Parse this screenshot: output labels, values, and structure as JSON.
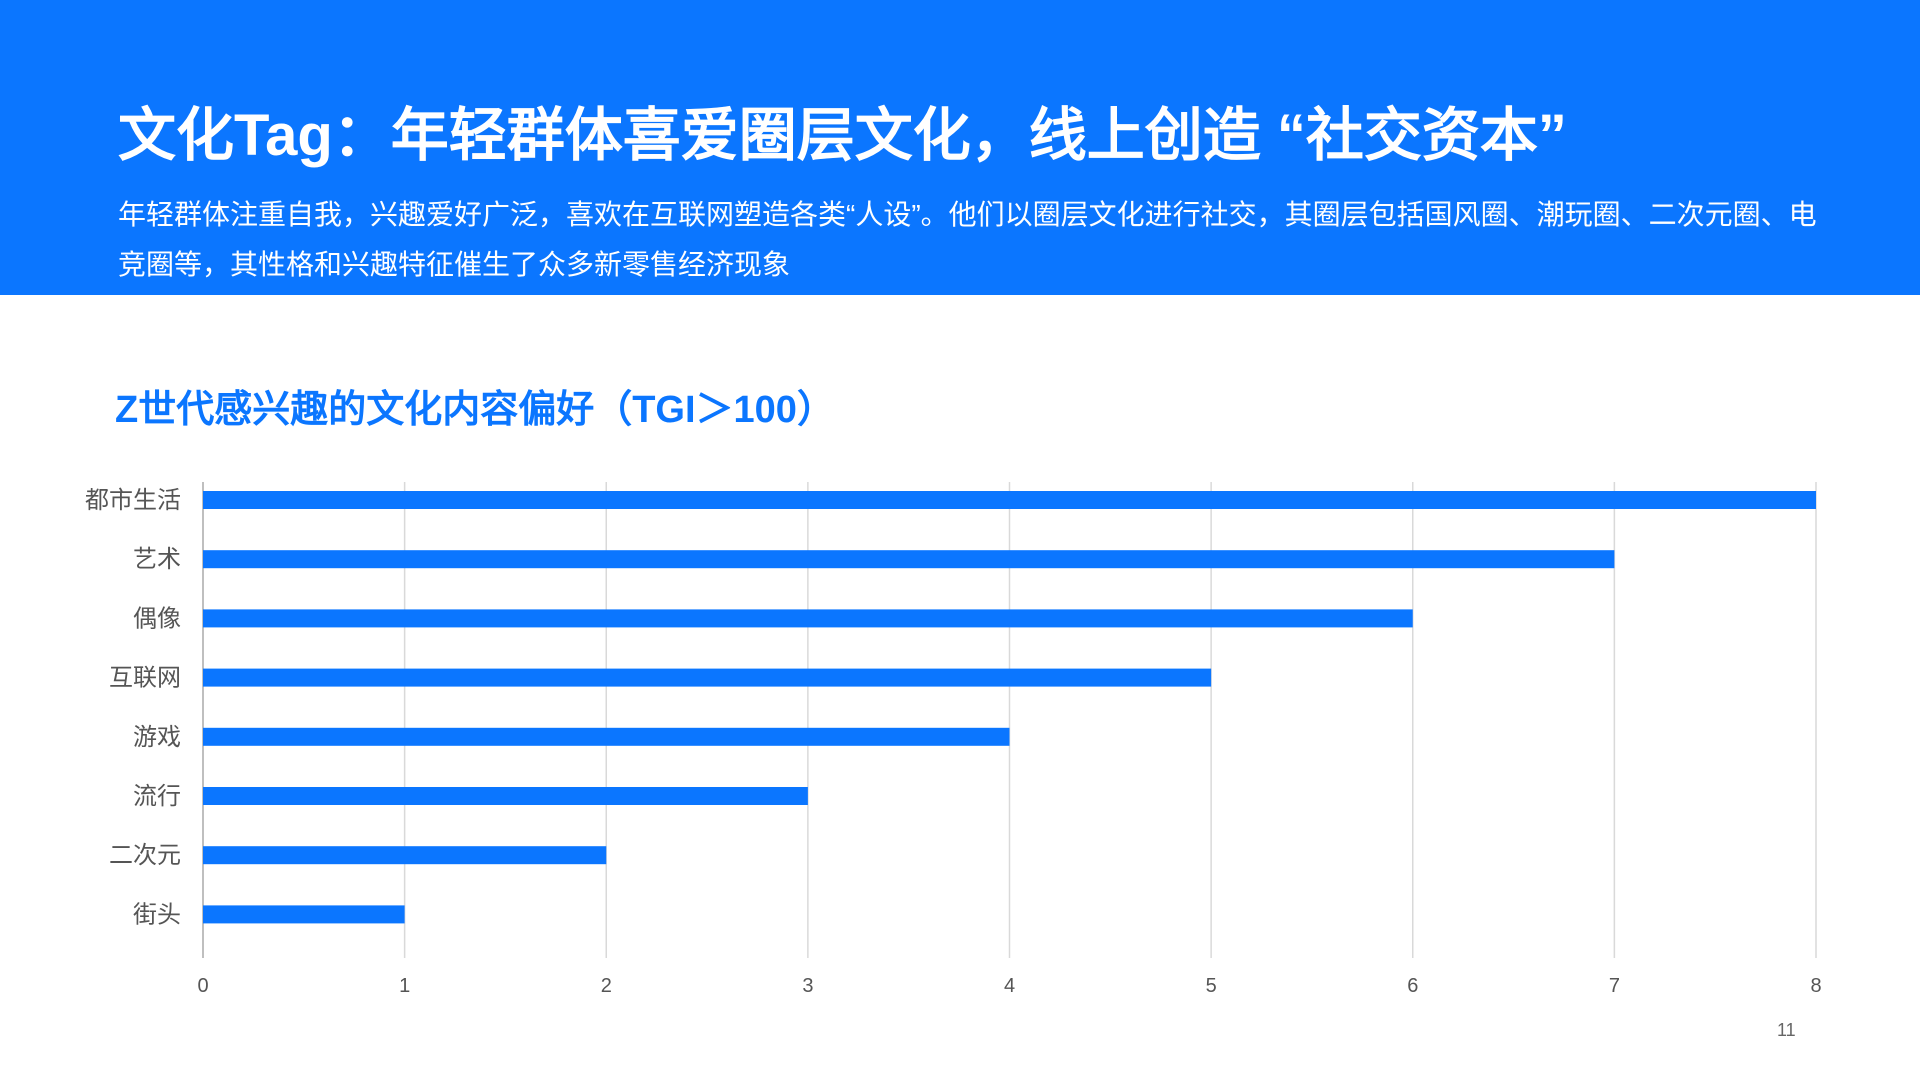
{
  "header": {
    "title": "文化Tag：年轻群体喜爱圈层文化，线上创造 “社交资本”",
    "subtitle": "年轻群体注重自我，兴趣爱好广泛，喜欢在互联网塑造各类“人设”。他们以圈层文化进行社交，其圈层包括国风圈、潮玩圈、二次元圈、电竞圈等，其性格和兴趣特征催生了众多新零售经济现象"
  },
  "chart_data": {
    "type": "bar",
    "orientation": "horizontal",
    "title": "Z世代感兴趣的文化内容偏好（TGI＞100）",
    "categories": [
      "都市生活",
      "艺术",
      "偶像",
      "互联网",
      "游戏",
      "流行",
      "二次元",
      "街头"
    ],
    "values": [
      8,
      7,
      6,
      5,
      4,
      3,
      2,
      1
    ],
    "xlim": [
      0,
      8
    ],
    "xticks": [
      "0",
      "1",
      "2",
      "3",
      "4",
      "5",
      "6",
      "7",
      "8"
    ],
    "grid": true,
    "bar_color": "#0b76ff"
  },
  "colors": {
    "accent": "#0b76ff",
    "grid": "#d9d9d9",
    "axis_text": "#555555"
  },
  "footer": {
    "page_number": "11"
  }
}
